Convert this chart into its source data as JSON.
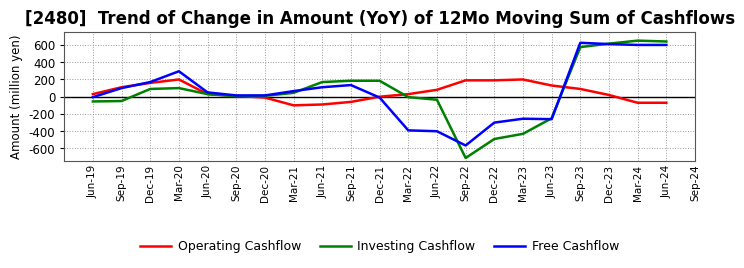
{
  "title": "[2480]  Trend of Change in Amount (YoY) of 12Mo Moving Sum of Cashflows",
  "ylabel": "Amount (million yen)",
  "x_labels": [
    "Jun-19",
    "Sep-19",
    "Dec-19",
    "Mar-20",
    "Jun-20",
    "Sep-20",
    "Dec-20",
    "Mar-21",
    "Jun-21",
    "Sep-21",
    "Dec-21",
    "Mar-22",
    "Jun-22",
    "Sep-22",
    "Dec-22",
    "Mar-23",
    "Jun-23",
    "Sep-23",
    "Dec-23",
    "Mar-24",
    "Jun-24",
    "Sep-24"
  ],
  "operating_cashflow": [
    30,
    110,
    160,
    200,
    30,
    10,
    -10,
    -100,
    -90,
    -60,
    0,
    30,
    80,
    190,
    190,
    200,
    130,
    90,
    20,
    -70,
    -70,
    null
  ],
  "investing_cashflow": [
    -55,
    -50,
    90,
    100,
    30,
    5,
    10,
    45,
    170,
    185,
    185,
    -5,
    -35,
    -710,
    -490,
    -430,
    -250,
    575,
    615,
    650,
    640,
    null
  ],
  "free_cashflow": [
    -5,
    100,
    170,
    295,
    50,
    15,
    15,
    65,
    110,
    135,
    -10,
    -390,
    -400,
    -565,
    -300,
    -255,
    -260,
    625,
    610,
    600,
    600,
    null
  ],
  "operating_color": "#ff0000",
  "investing_color": "#008000",
  "free_color": "#0000ff",
  "ylim": [
    -750,
    750
  ],
  "yticks": [
    -600,
    -400,
    -200,
    0,
    200,
    400,
    600
  ],
  "background_color": "#ffffff",
  "plot_bg_color": "#ffffff",
  "grid_color": "#999999",
  "title_fontsize": 12,
  "legend_labels": [
    "Operating Cashflow",
    "Investing Cashflow",
    "Free Cashflow"
  ]
}
